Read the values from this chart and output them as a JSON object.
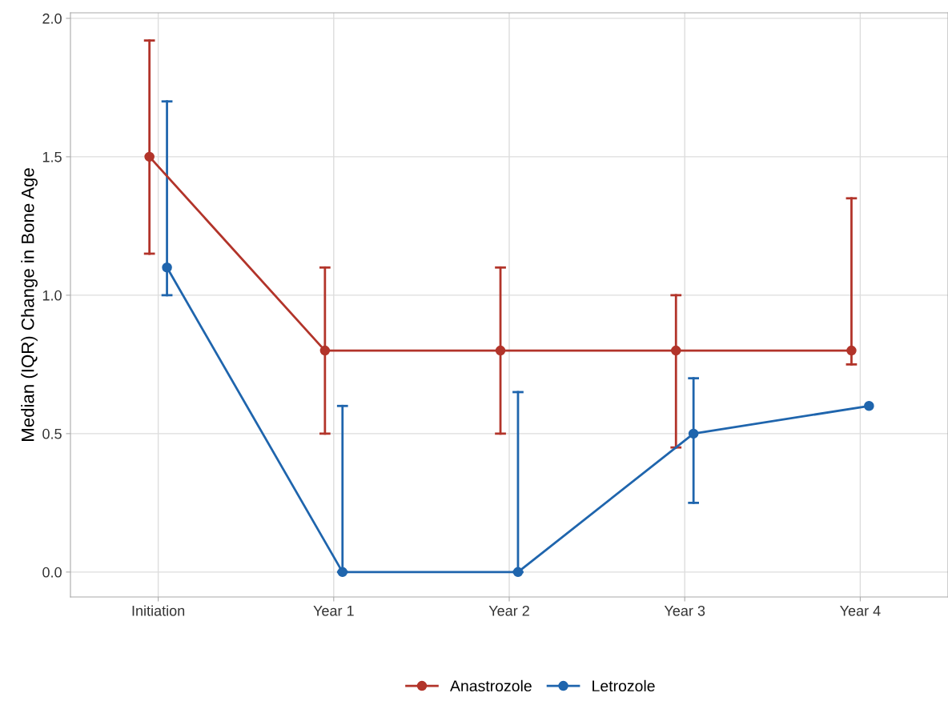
{
  "chart_data": {
    "type": "line",
    "ylabel": "Median (IQR) Change in Bone Age",
    "categories": [
      "Initiation",
      "Year 1",
      "Year 2",
      "Year 3",
      "Year 4"
    ],
    "series": [
      {
        "name": "Anastrozole",
        "color": "#b2342a",
        "values": [
          1.5,
          0.8,
          0.8,
          0.8,
          0.8
        ],
        "errors": [
          [
            1.15,
            1.92
          ],
          [
            0.5,
            1.1
          ],
          [
            0.5,
            1.1
          ],
          [
            0.45,
            1.0
          ],
          [
            0.75,
            1.35
          ]
        ]
      },
      {
        "name": "Letrozole",
        "color": "#1f65ad",
        "values": [
          1.1,
          0,
          0,
          0.5,
          0.6
        ],
        "errors": [
          [
            1.0,
            1.7
          ],
          [
            0,
            0.6
          ],
          [
            0,
            0.65
          ],
          [
            0.25,
            0.7
          ],
          null
        ]
      }
    ],
    "ylim": [
      -0.09,
      2.02
    ],
    "yticks": [
      {
        "value": 0,
        "label": "0.0"
      },
      0.5,
      {
        "value": 1,
        "label": "1.0"
      },
      1.5,
      {
        "value": 2,
        "label": "2.0"
      }
    ],
    "grid": true,
    "legend": "bottom",
    "marker": "circle",
    "line_style": "solid"
  }
}
